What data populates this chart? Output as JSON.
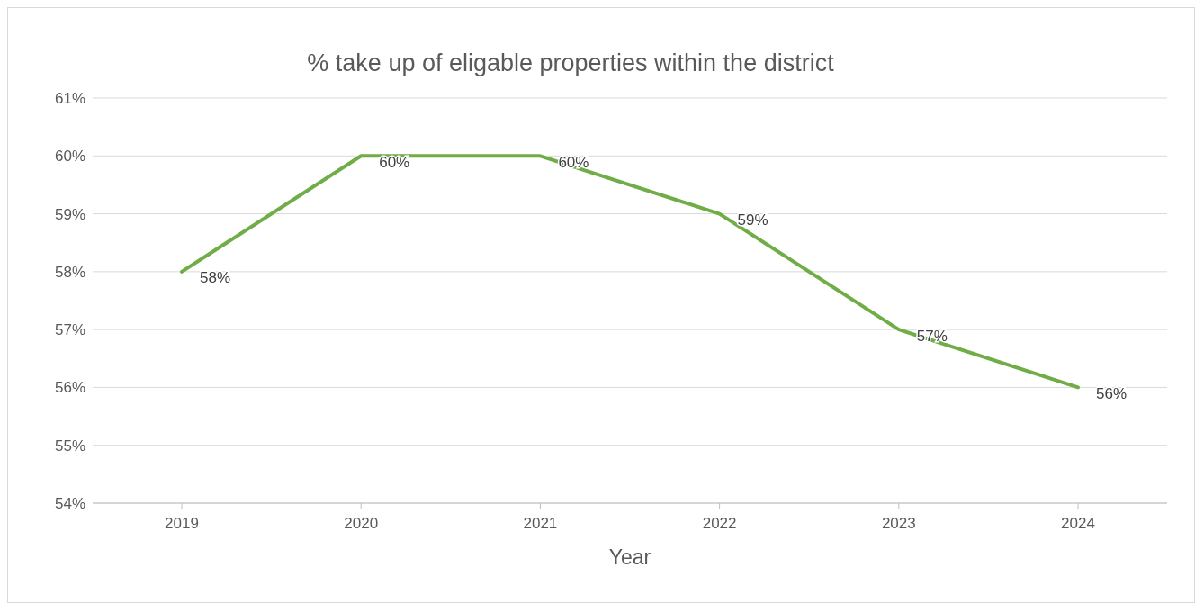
{
  "chart_data": {
    "type": "line",
    "title": "% take up of eligable properties within the district",
    "xlabel": "Year",
    "categories": [
      "2019",
      "2020",
      "2021",
      "2022",
      "2023",
      "2024"
    ],
    "series": [
      {
        "color": "#70ad47",
        "values": [
          58,
          60,
          60,
          59,
          57,
          56
        ],
        "value_labels": [
          "58%",
          "60%",
          "60%",
          "59%",
          "57%",
          "56%"
        ]
      }
    ],
    "ylim": [
      54,
      61
    ],
    "yticks": [
      {
        "value": 54,
        "label": "54%"
      },
      {
        "value": 55,
        "label": "55%"
      },
      {
        "value": 56,
        "label": "56%"
      },
      {
        "value": 57,
        "label": "57%"
      },
      {
        "value": 58,
        "label": "58%"
      },
      {
        "value": 59,
        "label": "59%"
      },
      {
        "value": 60,
        "label": "60%"
      },
      {
        "value": 61,
        "label": "61%"
      }
    ],
    "grid": "y",
    "legend": false,
    "marker": "none",
    "line_style": "solid"
  }
}
